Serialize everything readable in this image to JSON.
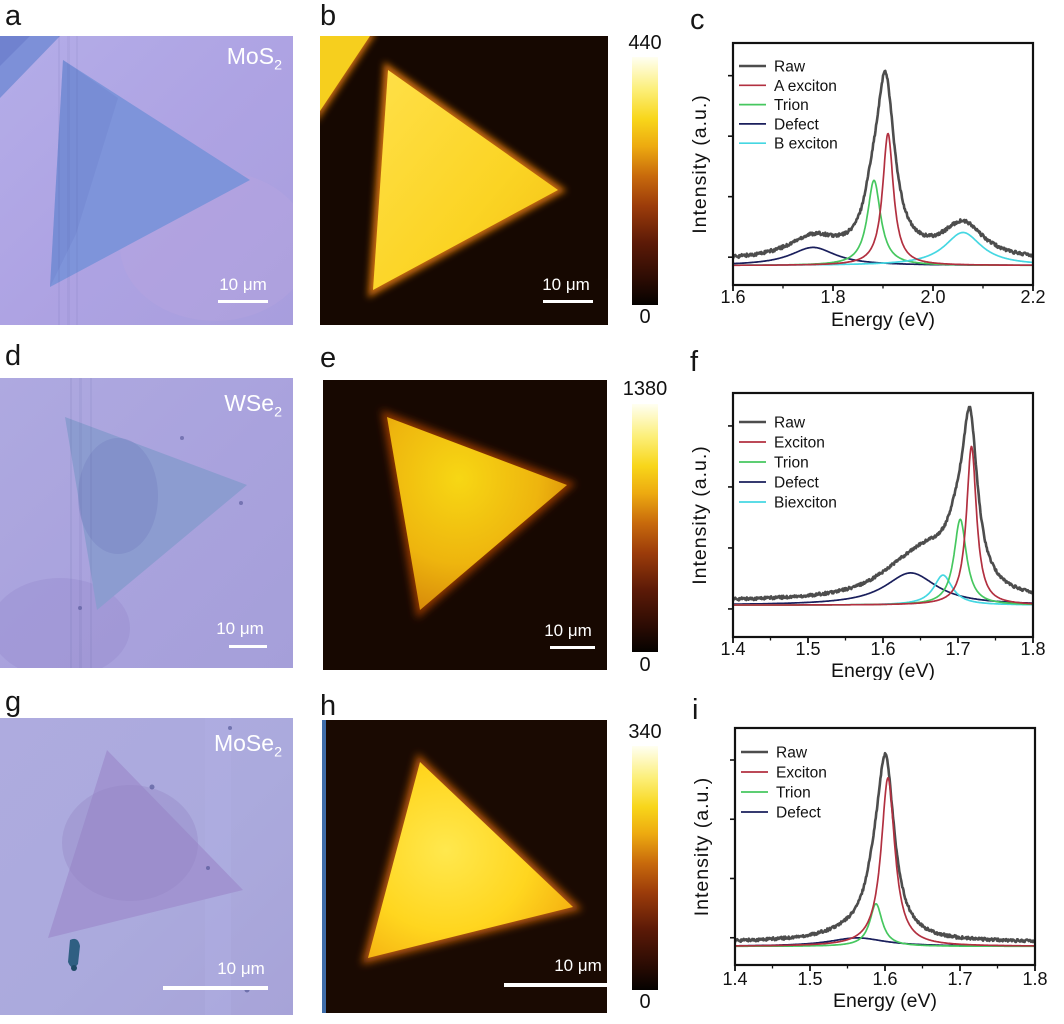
{
  "figure": {
    "panels": {
      "a": {
        "letter": "a",
        "material": "MoS",
        "material_sub": "2",
        "scalebar": "10 μm",
        "description": "optical image of MoS2 monolayer triangle"
      },
      "b": {
        "letter": "b",
        "scalebar": "10 μm",
        "colorbar_max": "440",
        "colorbar_min": "0",
        "description": "PL intensity map of MoS2"
      },
      "c": {
        "letter": "c"
      },
      "d": {
        "letter": "d",
        "material": "WSe",
        "material_sub": "2",
        "scalebar": "10 μm",
        "description": "optical image of WSe2 monolayer triangle"
      },
      "e": {
        "letter": "e",
        "scalebar": "10 μm",
        "colorbar_max": "1380",
        "colorbar_min": "0",
        "description": "PL intensity map of WSe2"
      },
      "f": {
        "letter": "f"
      },
      "g": {
        "letter": "g",
        "material": "MoSe",
        "material_sub": "2",
        "scalebar": "10 μm",
        "description": "optical image of MoSe2 monolayer triangle"
      },
      "h": {
        "letter": "h",
        "scalebar": "10 μm",
        "colorbar_max": "340",
        "colorbar_min": "0",
        "description": "PL intensity map of MoSe2"
      },
      "i": {
        "letter": "i"
      }
    }
  },
  "chart_data": [
    {
      "panel": "c",
      "type": "line",
      "title": "MoS2 PL spectrum with fit components",
      "xlabel": "Energy (eV)",
      "ylabel": "Intensity (a.u.)",
      "xlim": [
        1.6,
        2.2
      ],
      "xticks": [
        1.6,
        1.8,
        2.0,
        2.2
      ],
      "xtick_labels": [
        "1.6",
        "1.8",
        "2.0",
        "2.2"
      ],
      "xminor": [
        1.7,
        1.9,
        2.1
      ],
      "ylim": [
        0,
        1
      ],
      "grid": false,
      "legend_position": "top-left",
      "fit_model": "lorentzian peaks [center_eV, height_au, hwhm_eV] + baseline",
      "legend": [
        "Raw",
        "A exciton",
        "Trion",
        "Defect",
        "B exciton"
      ],
      "series": [
        {
          "name": "Raw",
          "color": "#4d4d4d",
          "width": 2.6,
          "baseline": 0.035,
          "noise": 0.008,
          "peaks": [
            [
              1.905,
              0.8,
              0.022
            ],
            [
              1.878,
              0.16,
              0.02
            ],
            [
              1.76,
              0.1,
              0.06
            ],
            [
              2.06,
              0.165,
              0.05
            ]
          ]
        },
        {
          "name": "Defect",
          "color": "#1a1f5c",
          "width": 1.7,
          "baseline": 0.012,
          "noise": 0,
          "peaks": [
            [
              1.76,
              0.085,
              0.055
            ]
          ]
        },
        {
          "name": "Trion",
          "color": "#46c75f",
          "width": 1.7,
          "baseline": 0.012,
          "noise": 0,
          "peaks": [
            [
              1.882,
              0.4,
              0.016
            ]
          ]
        },
        {
          "name": "B exciton",
          "color": "#45d7e2",
          "width": 1.7,
          "baseline": 0.012,
          "noise": 0,
          "peaks": [
            [
              2.06,
              0.155,
              0.045
            ]
          ]
        },
        {
          "name": "A exciton",
          "color": "#b23040",
          "width": 1.7,
          "baseline": 0.012,
          "noise": 0,
          "peaks": [
            [
              1.91,
              0.62,
              0.013
            ]
          ]
        }
      ]
    },
    {
      "panel": "f",
      "type": "line",
      "title": "WSe2 PL spectrum with fit components",
      "xlabel": "Energy (eV)",
      "ylabel": "Intensity (a.u.)",
      "xlim": [
        1.4,
        1.8
      ],
      "xticks": [
        1.4,
        1.5,
        1.6,
        1.7,
        1.8
      ],
      "xtick_labels": [
        "1.4",
        "1.5",
        "1.6",
        "1.7",
        "1.8"
      ],
      "xminor": [
        1.45,
        1.55,
        1.65,
        1.75
      ],
      "ylim": [
        0,
        1
      ],
      "grid": false,
      "legend_position": "top-left",
      "fit_model": "lorentzian peaks [center_eV, height_au, hwhm_eV] + baseline",
      "legend": [
        "Raw",
        "Exciton",
        "Trion",
        "Defect",
        "Biexciton"
      ],
      "series": [
        {
          "name": "Raw",
          "color": "#4d4d4d",
          "width": 2.6,
          "baseline": 0.03,
          "noise": 0.007,
          "peaks": [
            [
              1.716,
              0.7,
              0.012
            ],
            [
              1.7,
              0.2,
              0.018
            ],
            [
              1.662,
              0.17,
              0.045
            ],
            [
              1.623,
              0.08,
              0.05
            ]
          ]
        },
        {
          "name": "Defect",
          "color": "#1a1f5c",
          "width": 1.7,
          "baseline": 0.012,
          "noise": 0,
          "peaks": [
            [
              1.637,
              0.15,
              0.042
            ]
          ]
        },
        {
          "name": "Biexciton",
          "color": "#45d7e2",
          "width": 1.7,
          "baseline": 0.012,
          "noise": 0,
          "peaks": [
            [
              1.68,
              0.14,
              0.015
            ]
          ]
        },
        {
          "name": "Trion",
          "color": "#46c75f",
          "width": 1.7,
          "baseline": 0.012,
          "noise": 0,
          "peaks": [
            [
              1.703,
              0.4,
              0.01
            ]
          ]
        },
        {
          "name": "Exciton",
          "color": "#b23040",
          "width": 1.7,
          "baseline": 0.012,
          "noise": 0,
          "peaks": [
            [
              1.718,
              0.74,
              0.008
            ]
          ]
        }
      ]
    },
    {
      "panel": "i",
      "type": "line",
      "title": "MoSe2 PL spectrum with fit components",
      "xlabel": "Energy (eV)",
      "ylabel": "Intensity (a.u.)",
      "xlim": [
        1.4,
        1.8
      ],
      "xticks": [
        1.4,
        1.5,
        1.6,
        1.7,
        1.8
      ],
      "xtick_labels": [
        "1.4",
        "1.5",
        "1.6",
        "1.7",
        "1.8"
      ],
      "xminor": [
        1.45,
        1.55,
        1.65,
        1.75
      ],
      "ylim": [
        0,
        1
      ],
      "grid": false,
      "legend_position": "top-left",
      "fit_model": "lorentzian peaks [center_eV, height_au, hwhm_eV] + baseline",
      "legend": [
        "Raw",
        "Exciton",
        "Trion",
        "Defect"
      ],
      "series": [
        {
          "name": "Raw",
          "color": "#4d4d4d",
          "width": 2.6,
          "baseline": 0.035,
          "noise": 0.007,
          "peaks": [
            [
              1.601,
              0.78,
              0.014
            ],
            [
              1.586,
              0.15,
              0.016
            ],
            [
              1.557,
              0.035,
              0.05
            ]
          ]
        },
        {
          "name": "Defect",
          "color": "#1a1f5c",
          "width": 1.7,
          "baseline": 0.015,
          "noise": 0,
          "peaks": [
            [
              1.563,
              0.04,
              0.045
            ]
          ]
        },
        {
          "name": "Trion",
          "color": "#46c75f",
          "width": 1.7,
          "baseline": 0.015,
          "noise": 0,
          "peaks": [
            [
              1.588,
              0.2,
              0.01
            ]
          ]
        },
        {
          "name": "Exciton",
          "color": "#b23040",
          "width": 1.7,
          "baseline": 0.015,
          "noise": 0,
          "peaks": [
            [
              1.604,
              0.79,
              0.011
            ]
          ]
        }
      ]
    }
  ]
}
